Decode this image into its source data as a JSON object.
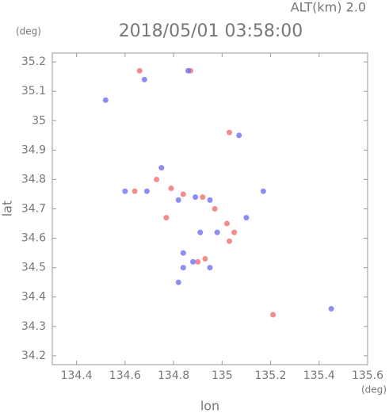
{
  "chart_data": {
    "type": "scatter",
    "annotation": "ALT(km) 2.0",
    "y_unit": "(deg)",
    "title": "2018/05/01 03:58:00",
    "ylabel": "lat",
    "xlabel": "lon",
    "x_unit": "(deg)",
    "xlim": [
      134.3,
      135.6
    ],
    "ylim": [
      34.17,
      35.23
    ],
    "xticks": [
      134.4,
      134.6,
      134.8,
      135.0,
      135.2,
      135.4,
      135.6
    ],
    "yticks": [
      34.2,
      34.3,
      34.4,
      34.5,
      34.6,
      34.7,
      34.8,
      34.9,
      35.0,
      35.1,
      35.2
    ],
    "series": [
      {
        "color": "#f07070",
        "x": [
          134.66,
          134.87,
          135.03,
          134.64,
          134.79,
          134.84,
          134.92,
          134.97,
          134.77,
          135.02,
          135.05,
          135.03,
          134.93,
          134.9,
          135.21,
          134.73
        ],
        "y": [
          35.17,
          35.17,
          34.96,
          34.76,
          34.77,
          34.75,
          34.74,
          34.7,
          34.67,
          34.65,
          34.62,
          34.59,
          34.53,
          34.52,
          34.34,
          34.8
        ]
      },
      {
        "color": "#7070f0",
        "x": [
          134.68,
          134.52,
          135.07,
          134.75,
          134.6,
          134.69,
          134.82,
          134.89,
          134.95,
          135.1,
          135.17,
          134.98,
          134.84,
          134.88,
          134.84,
          134.95,
          134.82,
          135.45,
          134.86,
          134.91
        ],
        "y": [
          35.14,
          35.07,
          34.95,
          34.84,
          34.76,
          34.76,
          34.73,
          34.74,
          34.73,
          34.67,
          34.76,
          34.62,
          34.55,
          34.52,
          34.5,
          34.5,
          34.45,
          34.36,
          35.17,
          34.62
        ]
      }
    ]
  }
}
